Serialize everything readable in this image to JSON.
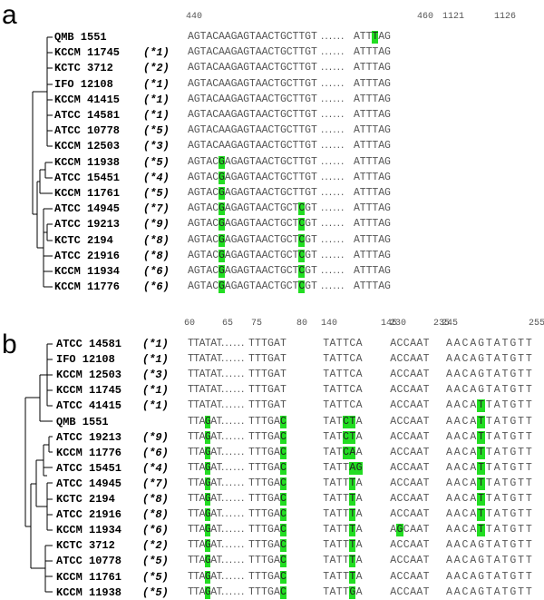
{
  "panel_a": {
    "label": "a",
    "positions": [
      440,
      460,
      1121,
      1126
    ],
    "rows": [
      {
        "strain": "QMB 1551",
        "segments": [
          "AGTACAAGAGTAACTGCTTGT",
          "......",
          "ATTTAG"
        ]
      },
      {
        "strain": "KCCM 11745",
        "group": "(*1)",
        "segments": [
          "AGTACAAGAGTAACTGCTTGT",
          "......",
          "ATTTAG"
        ]
      },
      {
        "strain": "KCTC 3712",
        "group": "(*2)",
        "segments": [
          "AGTACAAGAGTAACTGCTTGT",
          "......",
          "ATTTAG"
        ]
      },
      {
        "strain": "IFO 12108",
        "group": "(*1)",
        "segments": [
          "AGTACAAGAGTAACTGCTTGT",
          "......",
          "ATTTAG"
        ]
      },
      {
        "strain": "KCCM 41415",
        "group": "(*1)",
        "segments": [
          "AGTACAAGAGTAACTGCTTGT",
          "......",
          "ATTTAG"
        ]
      },
      {
        "strain": "ATCC 14581",
        "group": "(*1)",
        "segments": [
          "AGTACAAGAGTAACTGCTTGT",
          "......",
          "ATTTAG"
        ]
      },
      {
        "strain": "ATCC 10778",
        "group": "(*5)",
        "segments": [
          "AGTACAAGAGTAACTGCTTGT",
          "......",
          "ATTTAG"
        ]
      },
      {
        "strain": "KCCM 12503",
        "group": "(*3)",
        "segments": [
          "AGTACAAGAGTAACTGCTTGT",
          "......",
          "ATTTAG"
        ]
      },
      {
        "strain": "KCCM 11938",
        "group": "(*5)",
        "segments": [
          "AGTACGAGAGTAACTGCTTGT",
          "......",
          "ATTTAG"
        ]
      },
      {
        "strain": "ATCC 15451",
        "group": "(*4)",
        "segments": [
          "AGTACGAGAGTAACTGCTTGT",
          "......",
          "ATTTAG"
        ]
      },
      {
        "strain": "KCCM 11761",
        "group": "(*5)",
        "segments": [
          "AGTACGAGAGTAACTGCTTGT",
          "......",
          "ATTTAG"
        ]
      },
      {
        "strain": "ATCC 14945",
        "group": "(*7)",
        "segments": [
          "AGTACGAGAGTAACTGCTCGT",
          "......",
          "ATTTAG"
        ]
      },
      {
        "strain": "ATCC 19213",
        "group": "(*9)",
        "segments": [
          "AGTACGAGAGTAACTGCTCGT",
          "......",
          "ATTTAG"
        ]
      },
      {
        "strain": "KCTC 2194",
        "group": "(*8)",
        "segments": [
          "AGTACGAGAGTAACTGCTCGT",
          "......",
          "ATTTAG"
        ]
      },
      {
        "strain": "ATCC 21916",
        "group": "(*8)",
        "segments": [
          "AGTACGAGAGTAACTGCTCGT",
          "......",
          "ATTTAG"
        ]
      },
      {
        "strain": "KCCM 11934",
        "group": "(*6)",
        "segments": [
          "AGTACGAGAGTAACTGCTCGT",
          "......",
          "ATTTAG"
        ]
      },
      {
        "strain": "KCCM 11776",
        "group": "(*6)",
        "segments": [
          "AGTACGAGAGTAACTGCTCGT",
          "......",
          "ATTTAG"
        ]
      }
    ]
  },
  "panel_b": {
    "label": "b",
    "positions": [
      60,
      65,
      75,
      80,
      140,
      145,
      230,
      235,
      245,
      255
    ],
    "rows": [
      {
        "strain": "ATCC 14581",
        "group": "(*1)",
        "segments": [
          "TTATAT",
          "......",
          "TTTGAT",
          "TATTCA",
          "ACCAAT",
          "AACAGTATGTT"
        ]
      },
      {
        "strain": "IFO 12108",
        "group": "(*1)",
        "segments": [
          "TTATAT",
          "......",
          "TTTGAT",
          "TATTCA",
          "ACCAAT",
          "AACAGTATGTT"
        ]
      },
      {
        "strain": "KCCM 12503",
        "group": "(*3)",
        "segments": [
          "TTATAT",
          "......",
          "TTTGAT",
          "TATTCA",
          "ACCAAT",
          "AACAGTATGTT"
        ]
      },
      {
        "strain": "KCCM 11745",
        "group": "(*1)",
        "segments": [
          "TTATAT",
          "......",
          "TTTGAT",
          "TATTCA",
          "ACCAAT",
          "AACAGTATGTT"
        ]
      },
      {
        "strain": "ATCC 41415",
        "group": "(*1)",
        "segments": [
          "TTATAT",
          "......",
          "TTTGAT",
          "TATTCA",
          "ACCAAT",
          "AACATTATGTT"
        ]
      },
      {
        "strain": "QMB 1551",
        "segments": [
          "TTAGAT",
          "......",
          "TTTGAC",
          "TATCTA",
          "ACCAAT",
          "AACATTATGTT"
        ]
      },
      {
        "strain": "ATCC 19213",
        "group": "(*9)",
        "segments": [
          "TTAGAT",
          "......",
          "TTTGAC",
          "TATCTA",
          "ACCAAT",
          "AACATTATGTT"
        ]
      },
      {
        "strain": "KCCM 11776",
        "group": "(*6)",
        "segments": [
          "TTAGAT",
          "......",
          "TTTGAC",
          "TATCAA",
          "ACCAAT",
          "AACATTATGTT"
        ]
      },
      {
        "strain": "ATCC 15451",
        "group": "(*4)",
        "segments": [
          "TTAGAT",
          "......",
          "TTTGAC",
          "TATTAG",
          "ACCAAT",
          "AACATTATGTT"
        ]
      },
      {
        "strain": "ATCC 14945",
        "group": "(*7)",
        "segments": [
          "TTAGAT",
          "......",
          "TTTGAC",
          "TATTTA",
          "ACCAAT",
          "AACATTATGTT"
        ]
      },
      {
        "strain": "KCTC 2194",
        "group": "(*8)",
        "segments": [
          "TTAGAT",
          "......",
          "TTTGAC",
          "TATTTA",
          "ACCAAT",
          "AACATTATGTT"
        ]
      },
      {
        "strain": "ATCC 21916",
        "group": "(*8)",
        "segments": [
          "TTAGAT",
          "......",
          "TTTGAC",
          "TATTTA",
          "ACCAAT",
          "AACATTATGTT"
        ]
      },
      {
        "strain": "KCCM 11934",
        "group": "(*6)",
        "segments": [
          "TTAGAT",
          "......",
          "TTTGAC",
          "TATTTA",
          "AGCAAT",
          "AACATTATGTT"
        ]
      },
      {
        "strain": "KCTC 3712",
        "group": "(*2)",
        "segments": [
          "TTAGAT",
          "......",
          "TTTGAC",
          "TATTTA",
          "ACCAAT",
          "AACAGTATGTT"
        ]
      },
      {
        "strain": "ATCC 10778",
        "group": "(*5)",
        "segments": [
          "TTAGAT",
          "......",
          "TTTGAC",
          "TATTTA",
          "ACCAAT",
          "AACAGTATGTT"
        ]
      },
      {
        "strain": "KCCM 11761",
        "group": "(*5)",
        "segments": [
          "TTAGAT",
          "......",
          "TTTGAC",
          "TATTTA",
          "ACCAAT",
          "AACAGTATGTT"
        ]
      },
      {
        "strain": "KCCM 11938",
        "group": "(*5)",
        "segments": [
          "TTAGAT",
          "......",
          "TTTGAC",
          "TATTGA",
          "ACCAAT",
          "AACAGTATGTT"
        ]
      }
    ]
  }
}
